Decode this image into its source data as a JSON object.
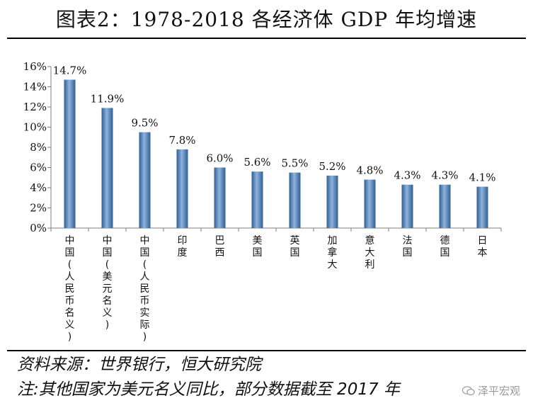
{
  "header": {
    "title": "图表2：1978-2018 各经济体 GDP 年均增速"
  },
  "chart_data": {
    "type": "bar",
    "categories": [
      "中国(人民币名义)",
      "中国(美元名义)",
      "中国(人民币实际)",
      "印度",
      "巴西",
      "美国",
      "英国",
      "加拿大",
      "意大利",
      "法国",
      "德国",
      "日本"
    ],
    "category_lines": [
      [
        "中",
        "国",
        "(",
        "人",
        "民",
        "币",
        "名",
        "义",
        ")"
      ],
      [
        "中",
        "国",
        "(",
        "美",
        "元",
        "名",
        "义",
        ")"
      ],
      [
        "中",
        "国",
        "(",
        "人",
        "民",
        "币",
        "实",
        "际",
        ")"
      ],
      [
        "印",
        "度"
      ],
      [
        "巴",
        "西"
      ],
      [
        "美",
        "国"
      ],
      [
        "英",
        "国"
      ],
      [
        "加",
        "拿",
        "大"
      ],
      [
        "意",
        "大",
        "利"
      ],
      [
        "法",
        "国"
      ],
      [
        "德",
        "国"
      ],
      [
        "日",
        "本"
      ]
    ],
    "values": [
      14.7,
      11.9,
      9.5,
      7.8,
      6.0,
      5.6,
      5.5,
      5.2,
      4.8,
      4.3,
      4.3,
      4.1
    ],
    "value_labels": [
      "14.7%",
      "11.9%",
      "9.5%",
      "7.8%",
      "6.0%",
      "5.6%",
      "5.5%",
      "5.2%",
      "4.8%",
      "4.3%",
      "4.3%",
      "4.1%"
    ],
    "ylim": [
      0,
      16
    ],
    "yticks": [
      0,
      2,
      4,
      6,
      8,
      10,
      12,
      14,
      16
    ],
    "ytick_labels": [
      "0%",
      "2%",
      "4%",
      "6%",
      "8%",
      "10%",
      "12%",
      "14%",
      "16%"
    ],
    "xlabel": "",
    "ylabel": "",
    "grid": false,
    "bar_color": "#4f81bd"
  },
  "notes": {
    "source": "资料来源：世界银行，恒大研究院",
    "note": "注:其他国家为美元名义同比，部分数据截至 2017 年"
  },
  "watermark": {
    "text": "泽平宏观"
  }
}
